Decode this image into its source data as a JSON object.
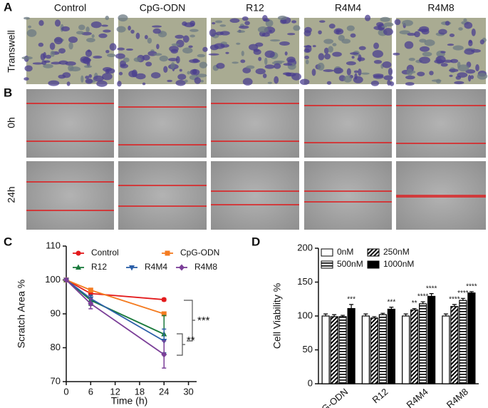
{
  "panel_labels": [
    "A",
    "B",
    "C",
    "D"
  ],
  "columns": [
    "Control",
    "CpG-ODN",
    "R12",
    "R4M4",
    "R4M8"
  ],
  "row_labels": [
    "Transwell",
    "0h",
    "24h"
  ],
  "chart_data": [
    {
      "type": "line",
      "xlabel": "Time (h)",
      "ylabel": "Scratch Area %",
      "x": [
        0,
        6,
        24
      ],
      "xlim": [
        0,
        32
      ],
      "xticks": [
        0,
        6,
        12,
        18,
        24,
        30
      ],
      "ylim": [
        70,
        110
      ],
      "yticks": [
        70,
        80,
        90,
        100,
        110
      ],
      "series": [
        {
          "name": "Control",
          "color": "#e31a1c",
          "marker": "circle",
          "values": [
            100,
            96,
            94.2
          ],
          "errors": [
            0,
            0.6,
            0.4
          ]
        },
        {
          "name": "CpG-ODN",
          "color": "#f47b20",
          "marker": "square",
          "values": [
            100,
            97,
            90
          ],
          "errors": [
            0,
            0.5,
            0.5
          ]
        },
        {
          "name": "R12",
          "color": "#1a7a3c",
          "marker": "triangle",
          "values": [
            100,
            94,
            84
          ],
          "errors": [
            0,
            1.5,
            5.5
          ]
        },
        {
          "name": "R4M4",
          "color": "#2b5fa8",
          "marker": "triangle-down",
          "values": [
            100,
            94.5,
            82
          ],
          "errors": [
            0,
            1,
            3.5
          ]
        },
        {
          "name": "R4M8",
          "color": "#7b3f98",
          "marker": "diamond",
          "values": [
            100,
            93,
            78
          ],
          "errors": [
            0,
            1.5,
            4
          ]
        }
      ],
      "annotations": [
        "**",
        "***"
      ]
    },
    {
      "type": "bar",
      "ylabel": "Cell Viability %",
      "categories": [
        "CpG-ODN",
        "R12",
        "R4M4",
        "R4M8"
      ],
      "ylim": [
        0,
        200
      ],
      "yticks": [
        0,
        50,
        100,
        150,
        200
      ],
      "series": [
        {
          "name": "0nM",
          "color": "#ffffff",
          "pattern": "none",
          "values": [
            100,
            100,
            100,
            100
          ],
          "errors": [
            3,
            3,
            3,
            3
          ],
          "stars": [
            null,
            null,
            null,
            null
          ]
        },
        {
          "name": "250nM",
          "color": "#ffffff",
          "pattern": "diagonal",
          "values": [
            99,
            97,
            109,
            114
          ],
          "errors": [
            3,
            2,
            2,
            3
          ],
          "stars": [
            null,
            null,
            "**",
            "****"
          ]
        },
        {
          "name": "500nM",
          "color": "#ffffff",
          "pattern": "horizontal",
          "values": [
            99,
            102,
            118,
            123
          ],
          "errors": [
            2,
            2,
            3,
            3
          ],
          "stars": [
            null,
            null,
            "****",
            "****"
          ]
        },
        {
          "name": "1000nM",
          "color": "#000000",
          "pattern": "none",
          "values": [
            111,
            110,
            129,
            134
          ],
          "errors": [
            6,
            3,
            4,
            2
          ],
          "stars": [
            "***",
            "***",
            "****",
            "****"
          ]
        }
      ]
    }
  ]
}
